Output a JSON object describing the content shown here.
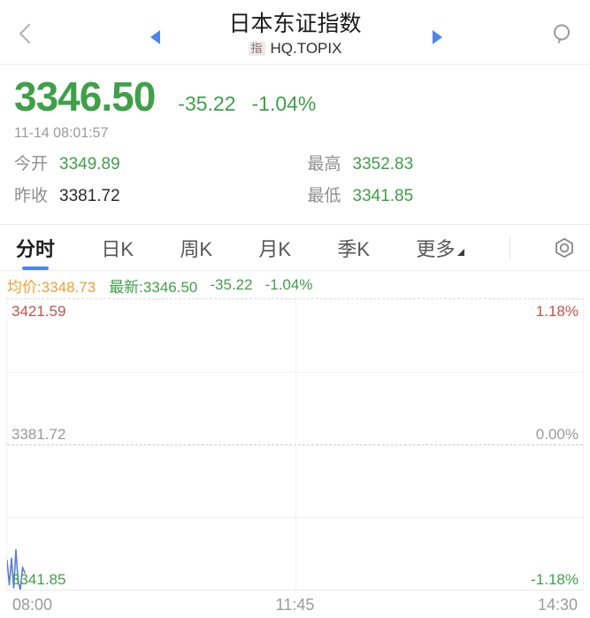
{
  "header": {
    "title": "日本东证指数",
    "market_badge": "指",
    "symbol": "HQ.TOPIX",
    "back_icon": "‹",
    "prev_icon": "◀",
    "next_icon": "▶",
    "search_icon": "magnifier"
  },
  "quote": {
    "price": "3346.50",
    "change": "-35.22",
    "change_pct": "-1.04%",
    "timestamp": "11-14 08:01:57",
    "stats": [
      {
        "label": "今开",
        "value": "3349.89"
      },
      {
        "label": "最高",
        "value": "3352.83"
      },
      {
        "label": "昨收",
        "value": "3381.72"
      },
      {
        "label": "最低",
        "value": "3341.85"
      }
    ]
  },
  "tabs": {
    "items": [
      {
        "label": "分时",
        "active": true
      },
      {
        "label": "日K"
      },
      {
        "label": "周K"
      },
      {
        "label": "月K"
      },
      {
        "label": "季K"
      },
      {
        "label": "更多",
        "has_caret": true
      }
    ],
    "settings_icon": "gear"
  },
  "legend": {
    "avg": "均价:3348.73",
    "latest": "最新:3346.50",
    "change": "-35.22",
    "change_pct": "-1.04%"
  },
  "colors": {
    "down_green": "#3fa048",
    "up_red": "#c0534c",
    "avg_orange": "#f0a030",
    "accent_blue": "#4a85f0",
    "line_blue": "#5b7fd0"
  },
  "chart_data": {
    "type": "line",
    "title": "分时 (intraday minute chart)",
    "x_axis": [
      "08:00",
      "11:45",
      "14:30"
    ],
    "x_range_minutes": 390,
    "y_axis_left": [
      "3421.59",
      "3381.72",
      "3341.85"
    ],
    "y_axis_right": [
      "1.18%",
      "0.00%",
      "-1.18%"
    ],
    "ylim": [
      3341.85,
      3421.59
    ],
    "prev_close": 3381.72,
    "grid": {
      "h_quarter_lines": true,
      "mid_dashed_prev_close": true,
      "v_center_line": true
    },
    "series": [
      {
        "name": "price",
        "color": "#5b7fd0",
        "x_minutes": [
          0,
          1.5,
          3,
          4.5,
          6,
          7.5,
          9,
          10.5,
          12
        ],
        "values": [
          3349.89,
          3343.2,
          3350.5,
          3342.3,
          3352.83,
          3344.0,
          3341.85,
          3348.0,
          3346.5
        ]
      }
    ]
  }
}
